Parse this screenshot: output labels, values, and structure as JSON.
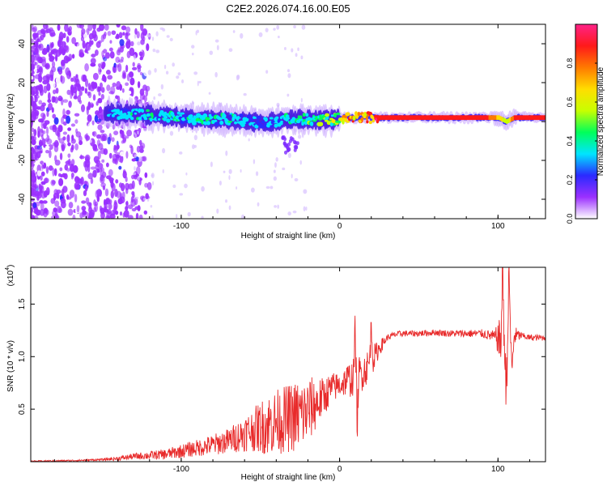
{
  "title": "C2E2.2026.074.16.00.E05",
  "chart_data": [
    {
      "type": "heatmap",
      "title": "C2E2.2026.074.16.00.E05",
      "xlabel": "Height of straight line (km)",
      "ylabel": "Frequency (Hz)",
      "xlim": [
        -195,
        130
      ],
      "ylim": [
        -50,
        50
      ],
      "xticks": [
        -100,
        0,
        100
      ],
      "xtick_labels": [
        "-100",
        "0",
        "100"
      ],
      "yticks": [
        -40,
        -20,
        0,
        20,
        40
      ],
      "ytick_labels": [
        "-40",
        "-20",
        "0",
        "20",
        "40"
      ],
      "colorbar": {
        "label": "Normalized spectral amplitude",
        "range": [
          0,
          1
        ],
        "ticks": [
          0.0,
          0.2,
          0.4,
          0.6,
          0.8
        ],
        "tick_labels": [
          "0.0",
          "0.2",
          "0.4",
          "0.6",
          "0.8"
        ],
        "colors": [
          "#ffffff",
          "#9b30ff",
          "#2a2aff",
          "#00e5ff",
          "#00ff5a",
          "#c8ff00",
          "#ffdd00",
          "#ff7a00",
          "#ff1a1a",
          "#ff2288"
        ]
      },
      "ridge": {
        "x": [
          -145,
          -130,
          -115,
          -100,
          -85,
          -70,
          -55,
          -45,
          -35,
          -25,
          -15,
          -5,
          0,
          5,
          15,
          30,
          50,
          70,
          90,
          100,
          105,
          110,
          130
        ],
        "center_freq": [
          4,
          4,
          3,
          2,
          1,
          1,
          0,
          -1,
          1,
          1,
          1,
          1,
          2,
          2,
          2,
          2,
          2,
          2,
          2,
          2,
          0,
          2,
          2
        ],
        "amplitude": [
          0.3,
          0.35,
          0.35,
          0.35,
          0.35,
          0.35,
          0.3,
          0.3,
          0.35,
          0.4,
          0.45,
          0.5,
          0.6,
          0.7,
          0.75,
          0.9,
          0.9,
          0.9,
          0.9,
          0.7,
          0.5,
          0.9,
          0.9
        ]
      }
    },
    {
      "type": "line",
      "xlabel": "Height of straight line (km)",
      "ylabel": "SNR (10 * v/v)",
      "y_multiplier": "(x10",
      "y_multiplier_exp": "4",
      "y_multiplier_close": ")",
      "xlim": [
        -195,
        130
      ],
      "ylim": [
        0,
        1.85
      ],
      "xticks": [
        -100,
        0,
        100
      ],
      "xtick_labels": [
        "-100",
        "0",
        "100"
      ],
      "yticks": [
        0.5,
        1.0,
        1.5
      ],
      "ytick_labels": [
        "0.5",
        "1.0",
        "1.5"
      ],
      "series": [
        {
          "name": "SNR",
          "color": "#e82b2b",
          "x": [
            -195,
            -170,
            -150,
            -140,
            -130,
            -120,
            -110,
            -100,
            -90,
            -80,
            -70,
            -60,
            -50,
            -40,
            -30,
            -22,
            -15,
            -10,
            -5,
            0,
            5,
            10,
            15,
            20,
            25,
            30,
            35,
            40,
            50,
            60,
            70,
            80,
            90,
            95,
            100,
            103,
            106,
            110,
            115,
            120,
            130
          ],
          "y": [
            0.005,
            0.01,
            0.02,
            0.03,
            0.05,
            0.06,
            0.07,
            0.1,
            0.13,
            0.16,
            0.2,
            0.27,
            0.33,
            0.38,
            0.42,
            0.46,
            0.55,
            0.62,
            0.7,
            0.73,
            0.78,
            0.8,
            0.86,
            0.95,
            1.08,
            1.18,
            1.21,
            1.22,
            1.22,
            1.23,
            1.22,
            1.22,
            1.22,
            1.2,
            1.18,
            1.1,
            1.05,
            1.2,
            1.2,
            1.18,
            1.18
          ]
        }
      ],
      "spikes": [
        {
          "x": 10,
          "y": 1.33
        },
        {
          "x": 11,
          "y": 0.32
        },
        {
          "x": 20,
          "y": 1.28
        },
        {
          "x": 103,
          "y": 1.82
        },
        {
          "x": 105,
          "y": 0.75
        },
        {
          "x": 107,
          "y": 1.78
        },
        {
          "x": 109,
          "y": 0.88
        }
      ],
      "noise_profile": {
        "x": [
          -195,
          -150,
          -130,
          -110,
          -90,
          -70,
          -55,
          -45,
          -35,
          -25,
          -18,
          -10,
          0,
          10,
          20,
          25,
          30,
          60,
          90,
          98,
          103,
          110,
          115,
          130
        ],
        "amp": [
          0.005,
          0.01,
          0.03,
          0.05,
          0.08,
          0.12,
          0.2,
          0.3,
          0.32,
          0.35,
          0.3,
          0.18,
          0.12,
          0.2,
          0.15,
          0.08,
          0.03,
          0.03,
          0.04,
          0.06,
          0.3,
          0.1,
          0.03,
          0.03
        ]
      }
    }
  ]
}
